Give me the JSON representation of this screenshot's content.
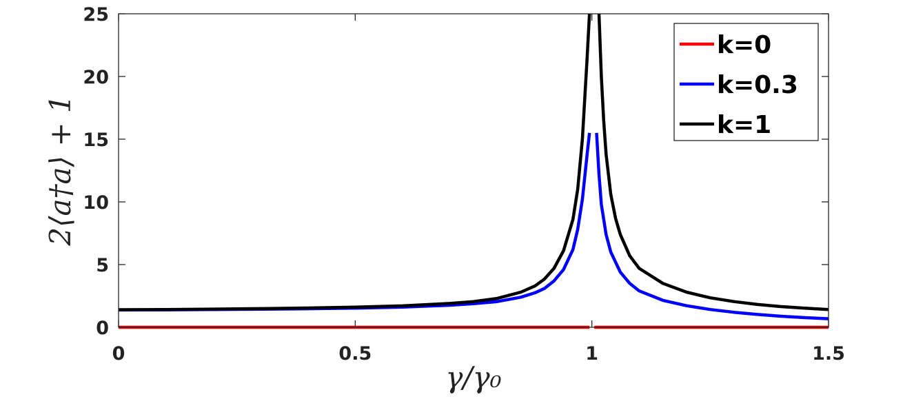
{
  "chart_data": {
    "type": "line",
    "xlabel": "γ/γ₀",
    "ylabel": "2⟨a†a⟩ + 1",
    "xlim": [
      0,
      1.5
    ],
    "ylim": [
      0,
      25
    ],
    "xticks": [
      "0",
      "0.5",
      "1",
      "1.5"
    ],
    "yticks": [
      "0",
      "5",
      "10",
      "15",
      "20",
      "25"
    ],
    "grid": false,
    "legend_position": "top-right",
    "series": [
      {
        "name": "k=0",
        "color": "#ff0000",
        "segments": [
          [
            [
              0,
              0
            ],
            [
              0.5,
              0
            ],
            [
              0.995,
              0
            ]
          ],
          [
            [
              1.005,
              0
            ],
            [
              1.25,
              0
            ],
            [
              1.5,
              0
            ]
          ]
        ]
      },
      {
        "name": "k=0.3",
        "color": "#0000ff",
        "segments": [
          [
            [
              0,
              1.38
            ],
            [
              0.1,
              1.39
            ],
            [
              0.2,
              1.41
            ],
            [
              0.3,
              1.44
            ],
            [
              0.4,
              1.48
            ],
            [
              0.5,
              1.53
            ],
            [
              0.6,
              1.61
            ],
            [
              0.7,
              1.76
            ],
            [
              0.75,
              1.88
            ],
            [
              0.8,
              2.05
            ],
            [
              0.85,
              2.4
            ],
            [
              0.88,
              2.75
            ],
            [
              0.9,
              3.1
            ],
            [
              0.92,
              3.7
            ],
            [
              0.94,
              4.6
            ],
            [
              0.96,
              6.2
            ],
            [
              0.97,
              7.8
            ],
            [
              0.98,
              10.2
            ],
            [
              0.99,
              13.8
            ],
            [
              0.995,
              15.5
            ]
          ],
          [
            [
              1.01,
              15.5
            ],
            [
              1.015,
              12.2
            ],
            [
              1.02,
              9.8
            ],
            [
              1.03,
              7.4
            ],
            [
              1.04,
              6.0
            ],
            [
              1.06,
              4.4
            ],
            [
              1.08,
              3.5
            ],
            [
              1.1,
              2.9
            ],
            [
              1.15,
              2.15
            ],
            [
              1.2,
              1.72
            ],
            [
              1.25,
              1.42
            ],
            [
              1.3,
              1.2
            ],
            [
              1.35,
              1.02
            ],
            [
              1.4,
              0.88
            ],
            [
              1.45,
              0.77
            ],
            [
              1.5,
              0.68
            ]
          ]
        ]
      },
      {
        "name": "k=1",
        "color": "#000000",
        "segments": [
          [
            [
              0,
              1.4
            ],
            [
              0.1,
              1.42
            ],
            [
              0.2,
              1.45
            ],
            [
              0.3,
              1.49
            ],
            [
              0.4,
              1.54
            ],
            [
              0.5,
              1.61
            ],
            [
              0.6,
              1.71
            ],
            [
              0.7,
              1.9
            ],
            [
              0.75,
              2.05
            ],
            [
              0.8,
              2.3
            ],
            [
              0.85,
              2.8
            ],
            [
              0.88,
              3.3
            ],
            [
              0.9,
              3.85
            ],
            [
              0.92,
              4.7
            ],
            [
              0.94,
              6.1
            ],
            [
              0.96,
              8.6
            ],
            [
              0.97,
              11.0
            ],
            [
              0.98,
              15.0
            ],
            [
              0.99,
              21.5
            ],
            [
              0.995,
              25
            ]
          ],
          [
            [
              1.015,
              25
            ],
            [
              1.02,
              20.0
            ],
            [
              1.025,
              16.5
            ],
            [
              1.03,
              13.8
            ],
            [
              1.04,
              10.6
            ],
            [
              1.05,
              8.7
            ],
            [
              1.06,
              7.4
            ],
            [
              1.08,
              5.7
            ],
            [
              1.1,
              4.7
            ],
            [
              1.15,
              3.5
            ],
            [
              1.2,
              2.8
            ],
            [
              1.25,
              2.35
            ],
            [
              1.3,
              2.05
            ],
            [
              1.35,
              1.82
            ],
            [
              1.4,
              1.65
            ],
            [
              1.45,
              1.53
            ],
            [
              1.5,
              1.42
            ]
          ]
        ]
      }
    ]
  }
}
